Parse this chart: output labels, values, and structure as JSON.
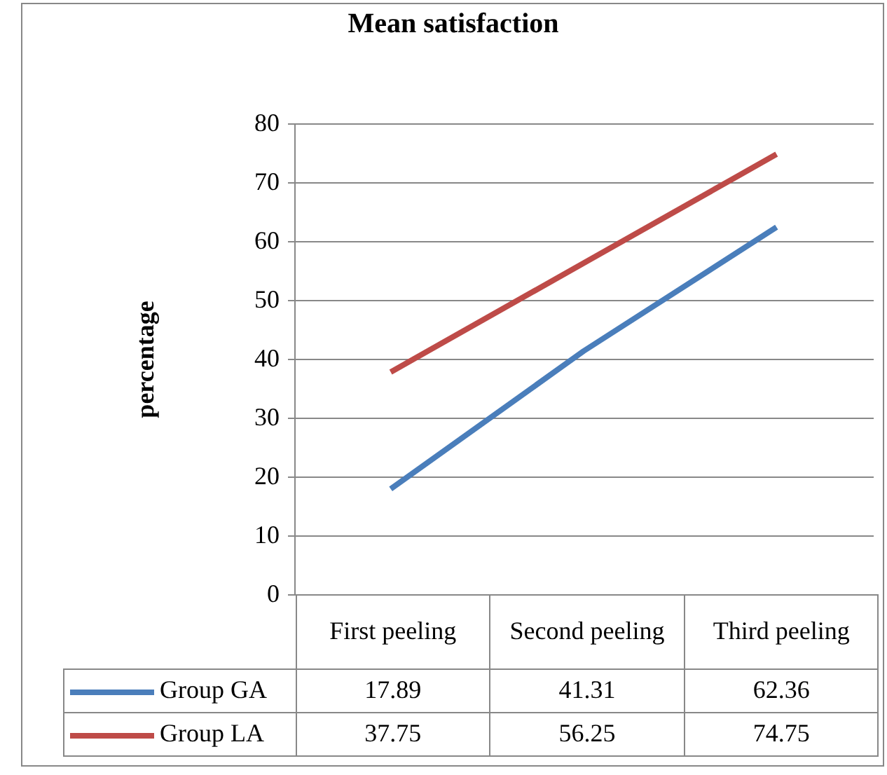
{
  "chart_data": {
    "type": "line",
    "title": "Mean satisfaction",
    "ylabel": "percentage",
    "categories": [
      "First peeling",
      "Second peeling",
      "Third peeling"
    ],
    "series": [
      {
        "name": "Group GA",
        "color": "#4a7ebb",
        "values": [
          17.89,
          41.31,
          62.36
        ]
      },
      {
        "name": "Group LA",
        "color": "#be4b48",
        "values": [
          37.75,
          56.25,
          74.75
        ]
      }
    ],
    "ylim": [
      0,
      80
    ],
    "yticks": [
      0,
      10,
      20,
      30,
      40,
      50,
      60,
      70,
      80
    ],
    "grid": "y",
    "legend": "bottom left",
    "data_labels": true
  }
}
